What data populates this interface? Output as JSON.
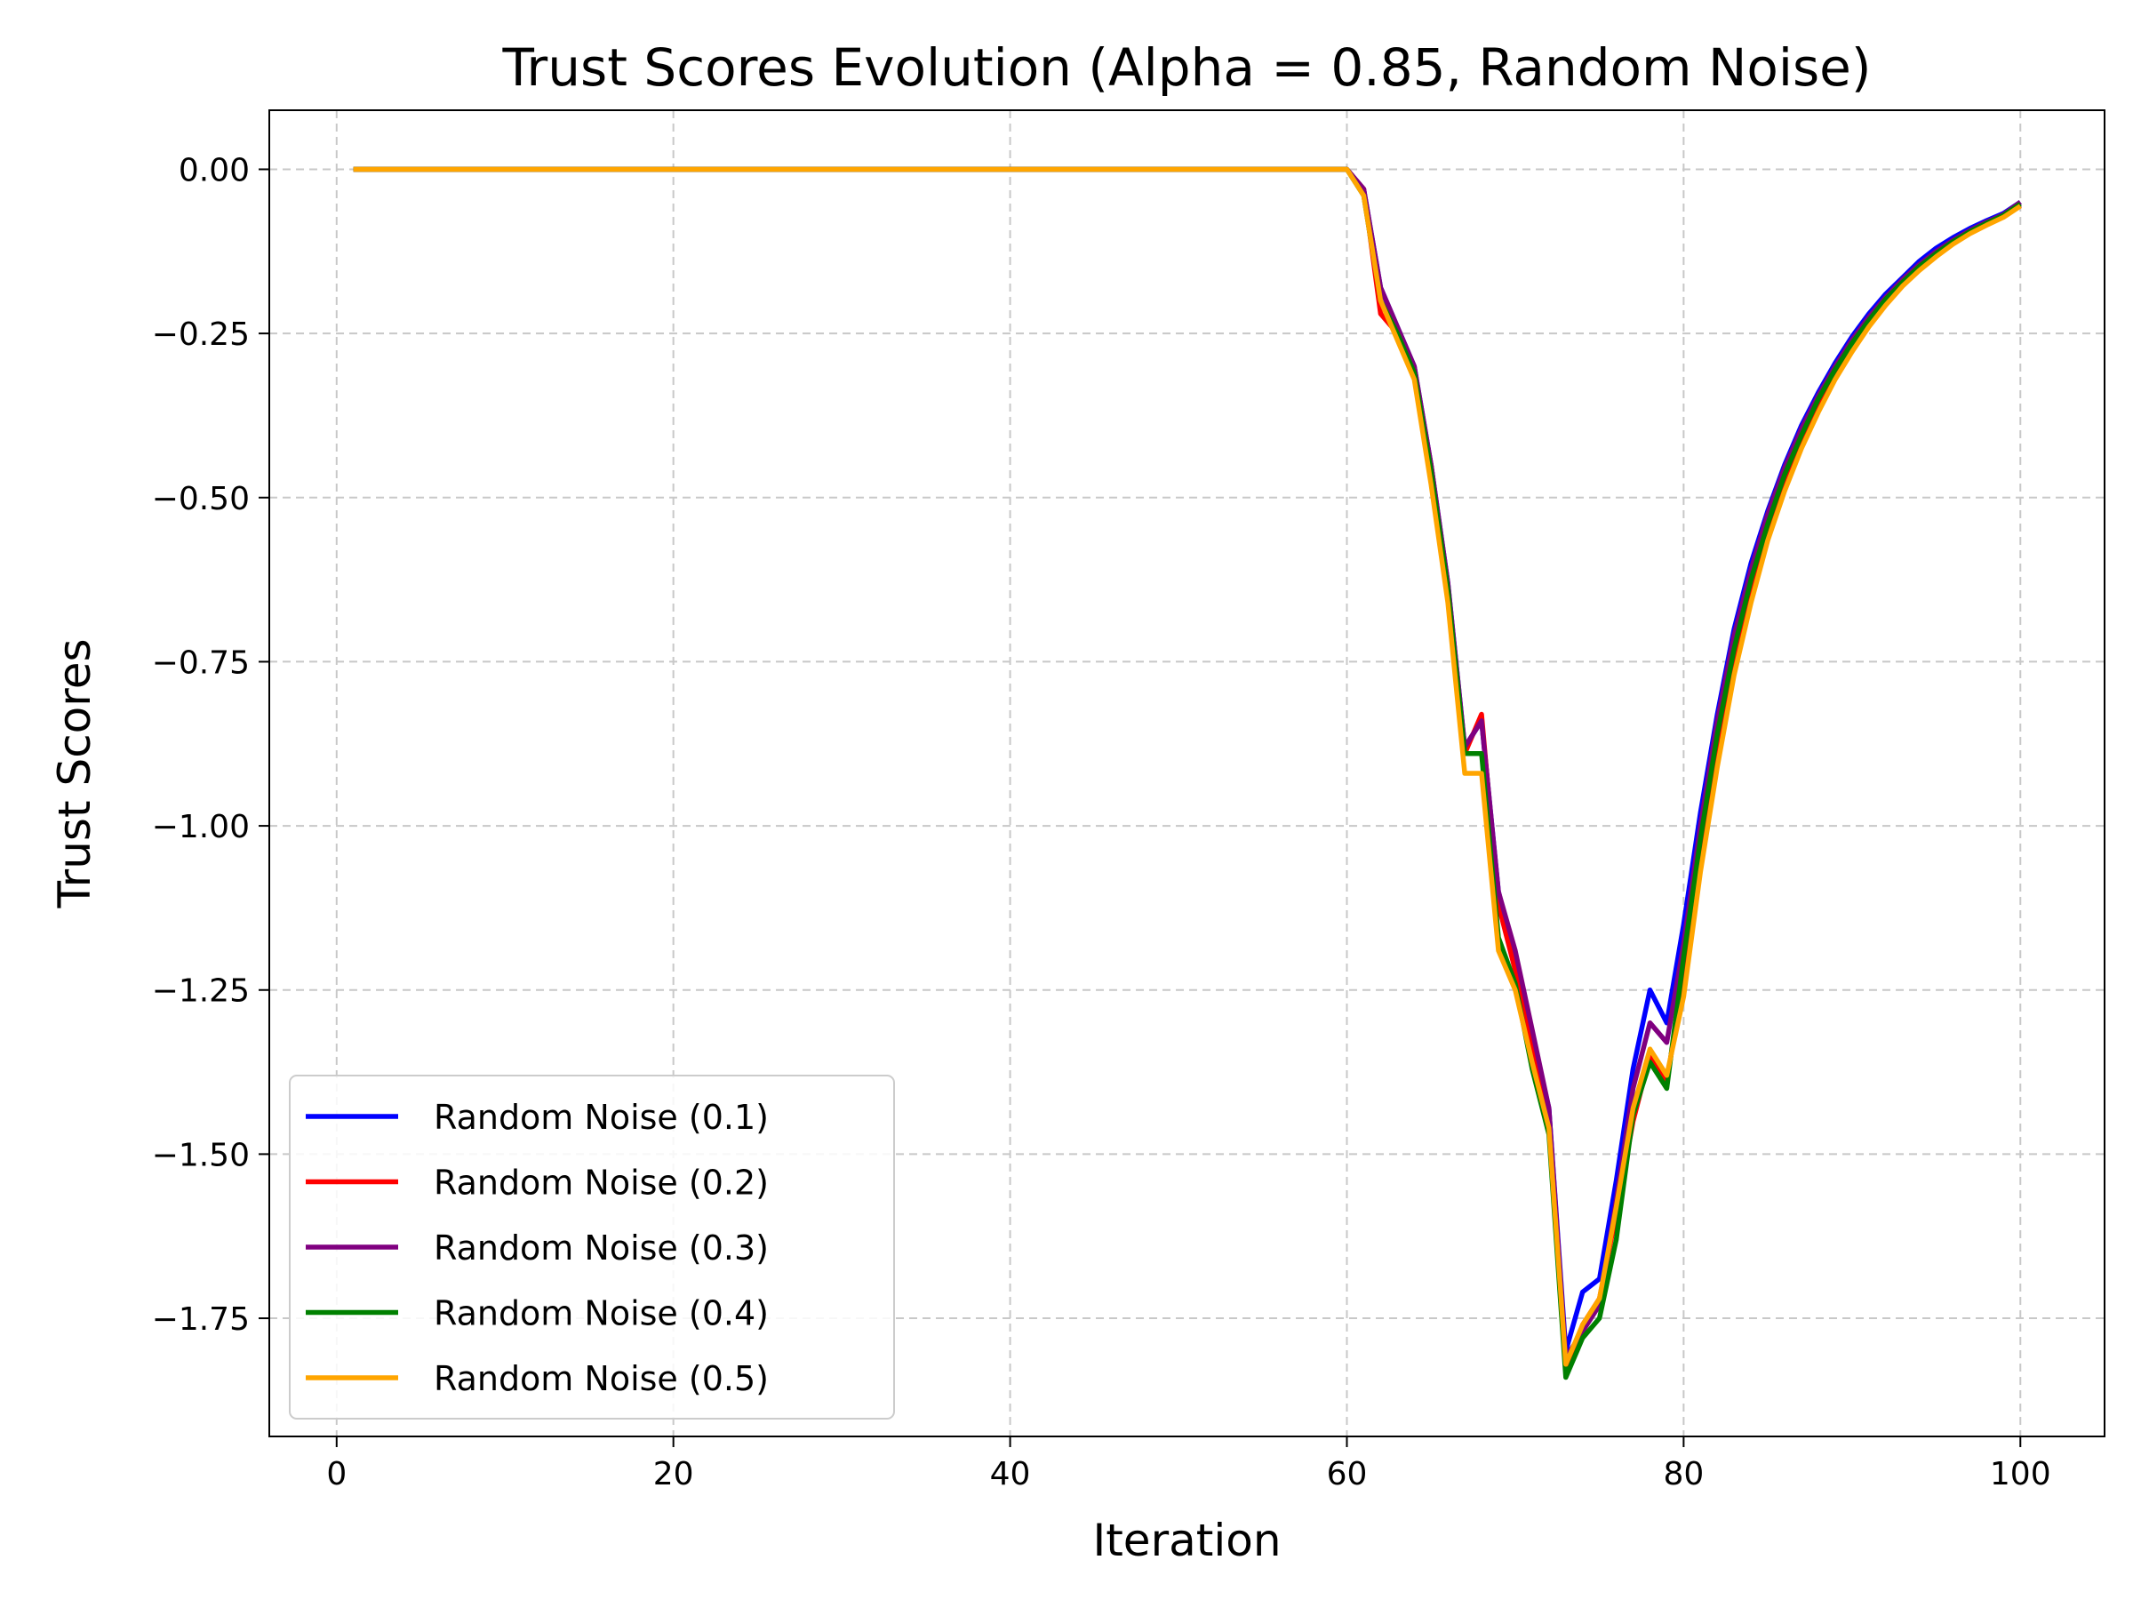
{
  "chart_data": {
    "type": "line",
    "title": "Trust Scores Evolution (Alpha = 0.85, Random Noise)",
    "xlabel": "Iteration",
    "ylabel": "Trust Scores",
    "xlim": [
      -4,
      105
    ],
    "ylim": [
      -1.93,
      0.09
    ],
    "xticks": [
      0,
      20,
      40,
      60,
      80,
      100
    ],
    "xtick_labels": [
      "0",
      "20",
      "40",
      "60",
      "80",
      "100"
    ],
    "yticks": [
      0.0,
      -0.25,
      -0.5,
      -0.75,
      -1.0,
      -1.25,
      -1.5,
      -1.75
    ],
    "ytick_labels": [
      "0.00",
      "−0.25",
      "−0.50",
      "−0.75",
      "−1.00",
      "−1.25",
      "−1.50",
      "−1.75"
    ],
    "grid": true,
    "legend_position": "lower-left",
    "x_start": 1,
    "x_end": 100,
    "zero_until": 60,
    "series": [
      {
        "name": "Random Noise (0.1)",
        "color": "#0000ff",
        "values_from_60": [
          0,
          -0.03,
          -0.18,
          -0.24,
          -0.3,
          -0.45,
          -0.63,
          -0.88,
          -0.84,
          -1.1,
          -1.2,
          -1.32,
          -1.43,
          -1.8,
          -1.71,
          -1.69,
          -1.54,
          -1.37,
          -1.25,
          -1.3,
          -1.15,
          -0.98,
          -0.83,
          -0.7,
          -0.6,
          -0.52,
          -0.45,
          -0.39,
          -0.34,
          -0.295,
          -0.255,
          -0.22,
          -0.19,
          -0.165,
          -0.14,
          -0.12,
          -0.104,
          -0.09,
          -0.078,
          -0.067,
          -0.05
        ]
      },
      {
        "name": "Random Noise (0.2)",
        "color": "#ff0000",
        "values_from_60": [
          0,
          -0.03,
          -0.22,
          -0.25,
          -0.31,
          -0.45,
          -0.64,
          -0.89,
          -0.83,
          -1.12,
          -1.22,
          -1.33,
          -1.44,
          -1.83,
          -1.76,
          -1.72,
          -1.59,
          -1.45,
          -1.35,
          -1.39,
          -1.23,
          -1.04,
          -0.88,
          -0.75,
          -0.64,
          -0.555,
          -0.48,
          -0.415,
          -0.36,
          -0.31,
          -0.27,
          -0.235,
          -0.2,
          -0.175,
          -0.15,
          -0.13,
          -0.112,
          -0.096,
          -0.083,
          -0.072,
          -0.055
        ]
      },
      {
        "name": "Random Noise (0.3)",
        "color": "#800080",
        "values_from_60": [
          0,
          -0.03,
          -0.18,
          -0.24,
          -0.3,
          -0.45,
          -0.63,
          -0.88,
          -0.84,
          -1.1,
          -1.19,
          -1.31,
          -1.43,
          -1.81,
          -1.77,
          -1.73,
          -1.57,
          -1.4,
          -1.3,
          -1.33,
          -1.18,
          -1.0,
          -0.84,
          -0.71,
          -0.61,
          -0.525,
          -0.455,
          -0.395,
          -0.345,
          -0.3,
          -0.26,
          -0.225,
          -0.195,
          -0.168,
          -0.145,
          -0.125,
          -0.108,
          -0.093,
          -0.08,
          -0.069,
          -0.05
        ]
      },
      {
        "name": "Random Noise (0.4)",
        "color": "#008000",
        "values_from_60": [
          0,
          -0.04,
          -0.2,
          -0.25,
          -0.31,
          -0.46,
          -0.64,
          -0.89,
          -0.89,
          -1.17,
          -1.24,
          -1.37,
          -1.47,
          -1.84,
          -1.78,
          -1.75,
          -1.63,
          -1.44,
          -1.36,
          -1.4,
          -1.2,
          -1.02,
          -0.86,
          -0.73,
          -0.625,
          -0.54,
          -0.465,
          -0.405,
          -0.35,
          -0.305,
          -0.265,
          -0.23,
          -0.198,
          -0.172,
          -0.148,
          -0.128,
          -0.11,
          -0.095,
          -0.082,
          -0.07,
          -0.053
        ]
      },
      {
        "name": "Random Noise (0.5)",
        "color": "#ffa500",
        "values_from_60": [
          0,
          -0.04,
          -0.2,
          -0.26,
          -0.32,
          -0.48,
          -0.66,
          -0.92,
          -0.92,
          -1.19,
          -1.25,
          -1.36,
          -1.46,
          -1.82,
          -1.76,
          -1.72,
          -1.58,
          -1.43,
          -1.34,
          -1.38,
          -1.26,
          -1.07,
          -0.91,
          -0.77,
          -0.66,
          -0.565,
          -0.49,
          -0.425,
          -0.37,
          -0.32,
          -0.278,
          -0.24,
          -0.207,
          -0.178,
          -0.154,
          -0.133,
          -0.114,
          -0.098,
          -0.085,
          -0.073,
          -0.056
        ]
      }
    ]
  }
}
